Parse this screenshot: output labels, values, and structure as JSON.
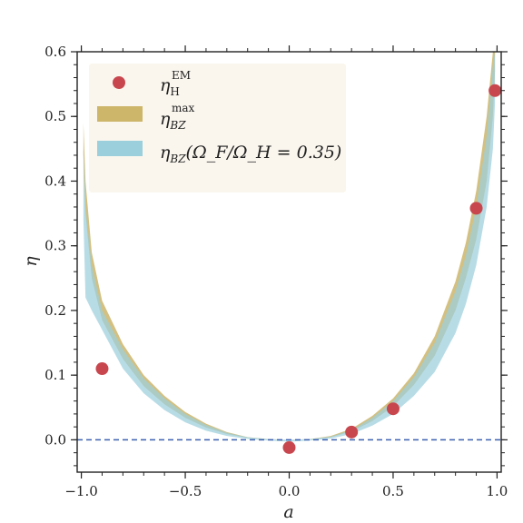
{
  "chart_data": {
    "type": "line",
    "xlabel": "a",
    "ylabel": "η",
    "xlim": [
      -1.02,
      1.02
    ],
    "ylim": [
      -0.05,
      0.6
    ],
    "x_ticks": [
      -1.0,
      -0.5,
      0.0,
      0.5,
      1.0
    ],
    "x_tick_labels": [
      "−1.0",
      "−0.5",
      "0.0",
      "0.5",
      "1.0"
    ],
    "y_ticks": [
      0.0,
      0.1,
      0.2,
      0.3,
      0.4,
      0.5,
      0.6
    ],
    "y_tick_labels": [
      "0.0",
      "0.1",
      "0.2",
      "0.3",
      "0.4",
      "0.5",
      "0.6"
    ],
    "grid": false,
    "legend_position": "top-left",
    "reference_line": {
      "y": 0.0,
      "style": "dashed",
      "color": "#3a5fb0"
    },
    "series": [
      {
        "name": "η_H^EM",
        "kind": "scatter",
        "color": "#c8474e",
        "points": [
          {
            "x": -0.9,
            "y": 0.11
          },
          {
            "x": 0.0,
            "y": -0.012
          },
          {
            "x": 0.3,
            "y": 0.012
          },
          {
            "x": 0.5,
            "y": 0.048
          },
          {
            "x": 0.9,
            "y": 0.358
          },
          {
            "x": 0.99,
            "y": 0.54
          }
        ]
      },
      {
        "name": "η_BZ^max",
        "kind": "band",
        "color": "#cdb56a",
        "x": [
          -0.99,
          -0.98,
          -0.95,
          -0.9,
          -0.8,
          -0.7,
          -0.6,
          -0.5,
          -0.4,
          -0.3,
          -0.2,
          -0.1,
          0.0,
          0.1,
          0.2,
          0.3,
          0.4,
          0.5,
          0.6,
          0.7,
          0.8,
          0.85,
          0.9,
          0.95,
          0.98,
          0.99
        ],
        "lower": [
          0.44,
          0.35,
          0.25,
          0.185,
          0.125,
          0.083,
          0.055,
          0.034,
          0.019,
          0.009,
          0.003,
          0.0005,
          0.0,
          0.0005,
          0.004,
          0.013,
          0.029,
          0.052,
          0.085,
          0.13,
          0.2,
          0.25,
          0.31,
          0.4,
          0.5,
          0.57
        ],
        "upper": [
          0.49,
          0.4,
          0.29,
          0.215,
          0.148,
          0.1,
          0.068,
          0.043,
          0.025,
          0.012,
          0.004,
          0.001,
          0.0,
          0.001,
          0.006,
          0.017,
          0.037,
          0.064,
          0.103,
          0.16,
          0.245,
          0.305,
          0.385,
          0.5,
          0.6,
          0.6
        ]
      },
      {
        "name": "η_BZ(Ω_F/Ω_H = 0.35)",
        "kind": "band",
        "color": "#9ccfdc",
        "x": [
          -0.99,
          -0.98,
          -0.95,
          -0.9,
          -0.8,
          -0.7,
          -0.6,
          -0.5,
          -0.4,
          -0.3,
          -0.2,
          -0.1,
          0.0,
          0.1,
          0.2,
          0.3,
          0.4,
          0.5,
          0.6,
          0.7,
          0.8,
          0.85,
          0.9,
          0.95,
          0.98,
          0.99
        ],
        "lower": [
          0.34,
          0.22,
          0.2,
          0.17,
          0.11,
          0.072,
          0.046,
          0.027,
          0.014,
          0.006,
          0.0015,
          -0.001,
          -0.003,
          -0.001,
          0.002,
          0.009,
          0.022,
          0.04,
          0.068,
          0.105,
          0.165,
          0.21,
          0.27,
          0.36,
          0.45,
          0.52
        ],
        "upper": [
          0.45,
          0.36,
          0.27,
          0.2,
          0.14,
          0.095,
          0.064,
          0.04,
          0.023,
          0.011,
          0.004,
          0.001,
          0.0,
          0.001,
          0.005,
          0.015,
          0.034,
          0.06,
          0.097,
          0.15,
          0.23,
          0.285,
          0.36,
          0.47,
          0.58,
          0.6
        ]
      }
    ],
    "legend": [
      {
        "label": "η",
        "sub": "H",
        "sup": "EM",
        "marker": "dot",
        "color": "#c8474e"
      },
      {
        "label": "η",
        "sub": "BZ",
        "sup": "max",
        "marker": "patch",
        "color": "#cdb56a"
      },
      {
        "label": "η",
        "sub": "BZ",
        "suffix": "(Ω_F/Ω_H = 0.35)",
        "marker": "patch",
        "color": "#9ccfdc"
      }
    ]
  }
}
